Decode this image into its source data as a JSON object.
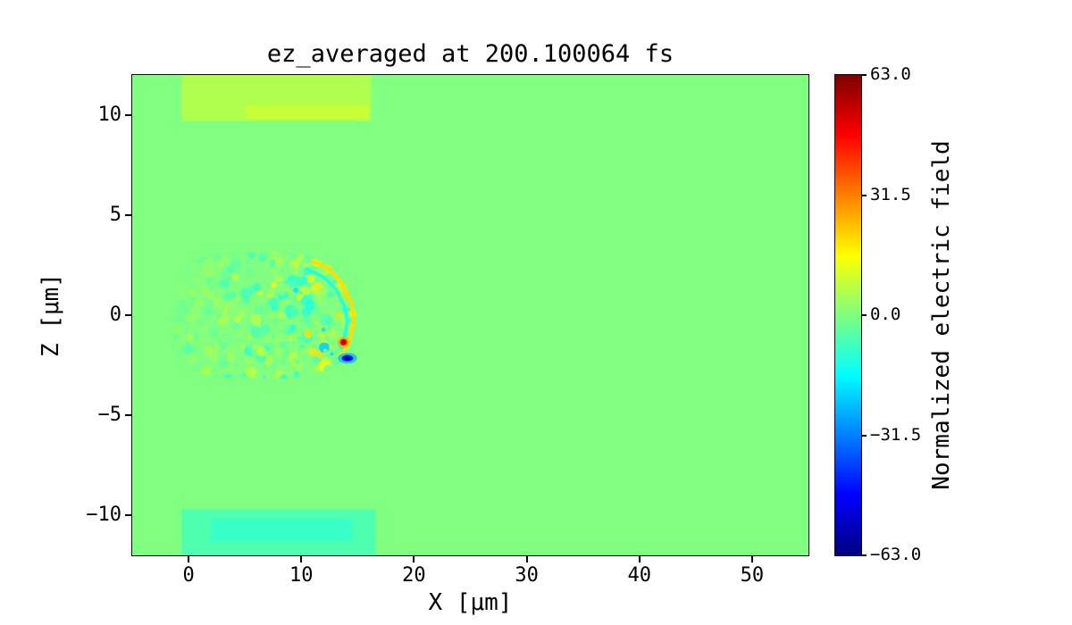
{
  "chart_data": {
    "type": "heatmap",
    "title": "ez_averaged at 200.100064 fs",
    "xlabel": "X [μm]",
    "ylabel": "Z [μm]",
    "xlim": [
      -5,
      55
    ],
    "ylim": [
      -12,
      12
    ],
    "x_ticks": [
      0,
      10,
      20,
      30,
      40,
      50
    ],
    "x_tick_labels": [
      "0",
      "10",
      "20",
      "30",
      "40",
      "50"
    ],
    "y_ticks": [
      10,
      5,
      0,
      -5,
      -10
    ],
    "y_tick_labels": [
      "10",
      "5",
      "0",
      "−5",
      "−10"
    ],
    "grid": false,
    "legend": "none",
    "colorbar": {
      "label": "Normalized electric field",
      "colormap": "jet",
      "vmin": -63.0,
      "vmax": 63.0,
      "ticks": [
        63.0,
        31.5,
        0.0,
        -31.5,
        -63.0
      ],
      "tick_labels": [
        "63.0",
        "31.5",
        "0.0",
        "−31.5",
        "−63.0"
      ],
      "position": "right"
    },
    "background_value": 0.0,
    "features": [
      {
        "name": "top-boundary-band",
        "kind": "rect",
        "x": [
          -0.6,
          16.2
        ],
        "z": [
          9.7,
          12.0
        ],
        "value": 6
      },
      {
        "name": "top-boundary-streak",
        "kind": "rect",
        "x": [
          5.0,
          16.0
        ],
        "z": [
          9.8,
          10.5
        ],
        "value": 9
      },
      {
        "name": "bottom-boundary-band",
        "kind": "rect",
        "x": [
          -0.6,
          16.6
        ],
        "z": [
          -12.0,
          -9.7
        ],
        "value": -6
      },
      {
        "name": "bottom-boundary-streak",
        "kind": "rect",
        "x": [
          2.0,
          14.5
        ],
        "z": [
          -11.3,
          -10.2
        ],
        "value": -9
      },
      {
        "name": "plasma-wake-region",
        "kind": "speckle",
        "outline": [
          [
            -1.3,
            0.2
          ],
          [
            0,
            2.6
          ],
          [
            2,
            3.0
          ],
          [
            5,
            3.1
          ],
          [
            8,
            3.2
          ],
          [
            11,
            2.9
          ],
          [
            13,
            2.4
          ],
          [
            14.3,
            1.3
          ],
          [
            14.9,
            0.0
          ],
          [
            14.6,
            -1.2
          ],
          [
            13.8,
            -2.2
          ],
          [
            12,
            -2.9
          ],
          [
            9,
            -3.15
          ],
          [
            6,
            -3.3
          ],
          [
            3,
            -3.1
          ],
          [
            -0.5,
            -2.9
          ],
          [
            -1.4,
            -1.0
          ]
        ],
        "value_range": [
          -22,
          22
        ]
      },
      {
        "name": "wakefront-arc",
        "kind": "arc",
        "points": [
          [
            11,
            2.7
          ],
          [
            12.5,
            2.3
          ],
          [
            13.6,
            1.6
          ],
          [
            14.4,
            0.7
          ],
          [
            14.7,
            -0.3
          ],
          [
            14.3,
            -1.3
          ],
          [
            13.6,
            -2.0
          ]
        ],
        "value": 20,
        "width": 0.35
      },
      {
        "name": "wakefront-inner-arc",
        "kind": "arc",
        "points": [
          [
            10.5,
            2.3
          ],
          [
            12.0,
            1.9
          ],
          [
            13.1,
            1.3
          ],
          [
            13.8,
            0.5
          ],
          [
            14.1,
            -0.3
          ],
          [
            13.8,
            -1.2
          ]
        ],
        "value": -13,
        "width": 0.3
      },
      {
        "name": "hot-spot",
        "kind": "spot",
        "x": 13.75,
        "z": -1.35,
        "rx": 0.32,
        "ry": 0.3,
        "value": 58
      },
      {
        "name": "cold-spot",
        "kind": "spot",
        "x": 14.1,
        "z": -2.15,
        "rx": 0.5,
        "ry": 0.28,
        "value": -58
      }
    ]
  }
}
